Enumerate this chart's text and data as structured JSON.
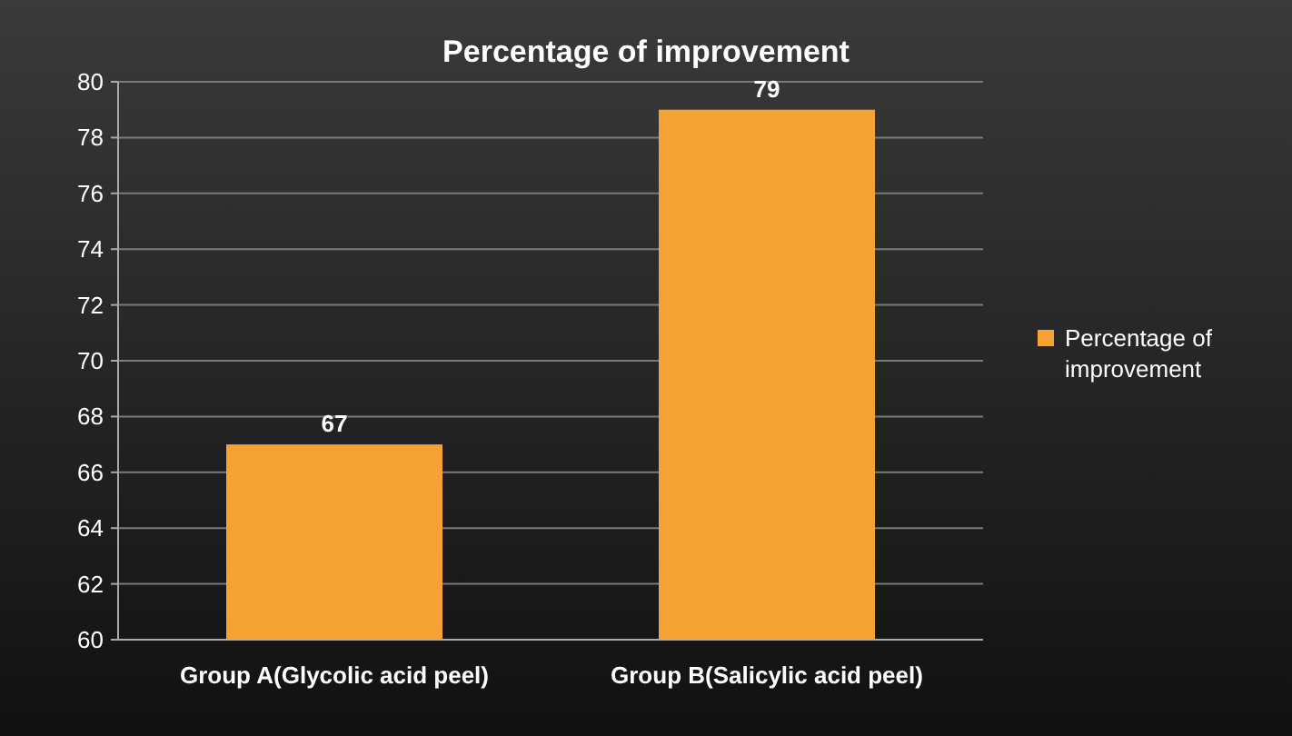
{
  "chart_data": {
    "type": "bar",
    "title": "Percentage of improvement",
    "categories": [
      "Group A(Glycolic acid peel)",
      "Group B(Salicylic acid peel)"
    ],
    "series": [
      {
        "name": "Percentage of improvement",
        "color": "#f4a234",
        "values": [
          67,
          79
        ]
      }
    ],
    "ylim": [
      60,
      80
    ],
    "yticks": [
      60,
      62,
      64,
      66,
      68,
      70,
      72,
      74,
      76,
      78,
      80
    ],
    "grid": "y",
    "legend": "right",
    "data_labels": true
  }
}
